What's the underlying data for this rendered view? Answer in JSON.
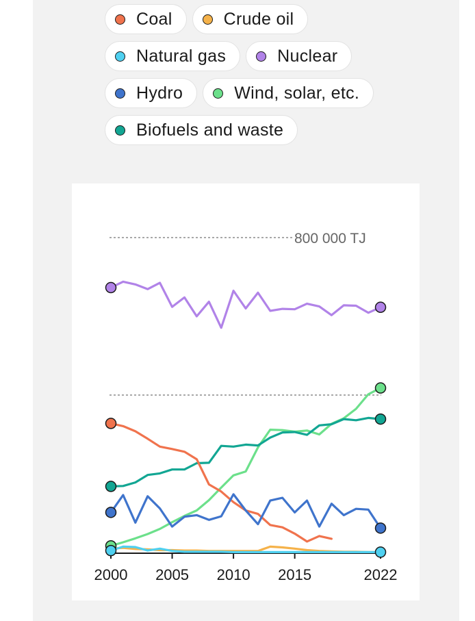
{
  "legend": [
    {
      "name": "Coal",
      "color": "#f0734d"
    },
    {
      "name": "Crude oil",
      "color": "#f5b24a"
    },
    {
      "name": "Natural gas",
      "color": "#4fd0f0"
    },
    {
      "name": "Nuclear",
      "color": "#b183e8"
    },
    {
      "name": "Hydro",
      "color": "#3f74cc"
    },
    {
      "name": "Wind, solar, etc.",
      "color": "#6ce08b"
    },
    {
      "name": "Biofuels and waste",
      "color": "#12a693"
    }
  ],
  "chart_data": {
    "type": "line",
    "reference_line": {
      "value": 800000,
      "label": "800 000 TJ"
    },
    "grid_lines": [
      400000,
      800000
    ],
    "x_ticks": [
      2000,
      2005,
      2010,
      2015,
      2022
    ],
    "xlim": [
      2000,
      2022
    ],
    "ylim": [
      0,
      800000
    ],
    "series": [
      {
        "name": "Nuclear",
        "color": "#b183e8",
        "end_markers": true,
        "x": [
          2000,
          2001,
          2002,
          2003,
          2004,
          2005,
          2006,
          2007,
          2008,
          2009,
          2010,
          2011,
          2012,
          2013,
          2014,
          2015,
          2016,
          2017,
          2018,
          2019,
          2020,
          2021,
          2022
        ],
        "y": [
          673000,
          688000,
          681000,
          669000,
          685000,
          624000,
          648000,
          600000,
          637000,
          571000,
          665000,
          620000,
          660000,
          614000,
          619000,
          618000,
          632000,
          625000,
          603000,
          628000,
          627000,
          609000,
          623000
        ]
      },
      {
        "name": "Wind, solar, etc.",
        "color": "#6ce08b",
        "end_markers": true,
        "x": [
          2000,
          2001,
          2002,
          2003,
          2004,
          2005,
          2006,
          2007,
          2008,
          2009,
          2010,
          2011,
          2012,
          2013,
          2014,
          2015,
          2016,
          2017,
          2018,
          2019,
          2020,
          2021,
          2022
        ],
        "y": [
          17000,
          26000,
          36000,
          47000,
          60000,
          77000,
          93000,
          107000,
          133000,
          165000,
          196000,
          206000,
          267000,
          312000,
          311000,
          307000,
          310000,
          300000,
          327000,
          341000,
          365000,
          402000,
          418000
        ]
      },
      {
        "name": "Biofuels and waste",
        "color": "#12a693",
        "end_markers": true,
        "x": [
          2000,
          2001,
          2002,
          2003,
          2004,
          2005,
          2006,
          2007,
          2008,
          2009,
          2010,
          2011,
          2012,
          2013,
          2014,
          2015,
          2016,
          2017,
          2018,
          2019,
          2020,
          2021,
          2022
        ],
        "y": [
          168000,
          169000,
          178000,
          197000,
          201000,
          211000,
          211000,
          227000,
          228000,
          271000,
          269000,
          274000,
          272000,
          292000,
          305000,
          306000,
          299000,
          323000,
          326000,
          339000,
          336000,
          342000,
          339000
        ]
      },
      {
        "name": "Coal",
        "color": "#f0734d",
        "end_markers": false,
        "x": [
          2000,
          2001,
          2002,
          2003,
          2004,
          2005,
          2006,
          2007,
          2008,
          2009,
          2010,
          2011,
          2012,
          2013,
          2014,
          2015,
          2016,
          2017,
          2018
        ],
        "y": [
          328000,
          321000,
          308000,
          289000,
          269000,
          263000,
          256000,
          237000,
          173000,
          155000,
          128000,
          107000,
          98000,
          70000,
          64000,
          48000,
          28000,
          42000,
          35000
        ]
      },
      {
        "name": "Hydro",
        "color": "#3f74cc",
        "end_markers": true,
        "x": [
          2000,
          2001,
          2002,
          2003,
          2004,
          2005,
          2006,
          2007,
          2008,
          2009,
          2010,
          2011,
          2012,
          2013,
          2014,
          2015,
          2016,
          2017,
          2018,
          2019,
          2020,
          2021,
          2022
        ],
        "y": [
          102000,
          146000,
          76000,
          143000,
          112000,
          66000,
          91000,
          95000,
          83000,
          92000,
          148000,
          107000,
          72000,
          132000,
          139000,
          102000,
          132000,
          66000,
          124000,
          95000,
          111000,
          109000,
          62000
        ]
      },
      {
        "name": "Crude oil",
        "color": "#f5b24a",
        "end_markers": false,
        "x": [
          2000,
          2001,
          2002,
          2003,
          2004,
          2005,
          2006,
          2007,
          2008,
          2009,
          2010,
          2011,
          2012,
          2013,
          2014,
          2015,
          2016,
          2017,
          2018,
          2019,
          2020,
          2021,
          2022
        ],
        "y": [
          10000,
          12000,
          9000,
          8000,
          6000,
          6000,
          5000,
          5000,
          4000,
          4000,
          4000,
          4000,
          4000,
          15000,
          13000,
          10000,
          6000,
          4000,
          3000,
          2000,
          2000,
          1000,
          1000
        ]
      },
      {
        "name": "Natural gas",
        "color": "#4fd0f0",
        "end_markers": true,
        "x": [
          2000,
          2001,
          2002,
          2003,
          2004,
          2005,
          2006,
          2007,
          2008,
          2009,
          2010,
          2011,
          2012,
          2013,
          2014,
          2015,
          2016,
          2017,
          2018,
          2019,
          2020,
          2021,
          2022
        ],
        "y": [
          5000,
          15000,
          14000,
          5000,
          10000,
          4000,
          2000,
          2000,
          2000,
          2000,
          1000,
          1000,
          1000,
          1000,
          1000,
          1000,
          1000,
          1000,
          1000,
          1000,
          1000,
          1000,
          1000
        ]
      }
    ]
  }
}
